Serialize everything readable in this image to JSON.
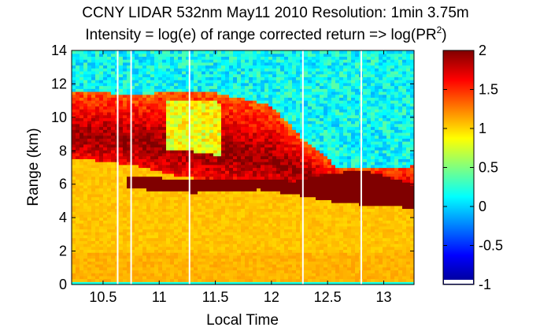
{
  "chart_data": {
    "type": "heatmap",
    "title_line1": "CCNY LIDAR 532nm May11 2010 Resolution: 1min 3.75m",
    "title_line2_prefix": "Intensity = log(e) of range corrected return => log(PR",
    "title_line2_sup": "2",
    "title_line2_suffix": ")",
    "xlabel": "Local Time",
    "ylabel": "Range (km)",
    "xlim": [
      10.22,
      13.27
    ],
    "ylim": [
      0,
      14
    ],
    "x_ticks": [
      10.5,
      11,
      11.5,
      12,
      12.5,
      13
    ],
    "x_tick_labels": [
      "10.5",
      "11",
      "11.5",
      "12",
      "12.5",
      "13"
    ],
    "y_ticks": [
      0,
      2,
      4,
      6,
      8,
      10,
      12,
      14
    ],
    "y_tick_labels": [
      "0",
      "2",
      "4",
      "6",
      "8",
      "10",
      "12",
      "14"
    ],
    "colorbar": {
      "range": [
        -1,
        2
      ],
      "ticks": [
        -1,
        -0.5,
        0,
        0.5,
        1,
        1.5,
        2
      ],
      "tick_labels": [
        "-1",
        "-0.5",
        "0",
        "0.5",
        "1",
        "1.5",
        "2"
      ],
      "colormap": "jet"
    },
    "gap_times": [
      10.63,
      10.75,
      11.27,
      12.28,
      12.8
    ],
    "layers": [
      {
        "x": [
          10.22,
          10.5,
          10.8,
          11.1,
          11.4,
          11.7,
          12.0,
          12.3,
          12.6,
          13.0,
          13.27
        ],
        "cloud_top": [
          11.5,
          11.5,
          11.3,
          11.6,
          11.6,
          11.2,
          10.7,
          8.6,
          7.0,
          7.0,
          7.1
        ],
        "aerosol_top": [
          7.6,
          7.4,
          7.1,
          6.6,
          6.3,
          6.0,
          5.8,
          5.4,
          4.9,
          4.8,
          4.6
        ]
      },
      {
        "dense_band_x": [
          10.72,
          11.0,
          11.3,
          11.6,
          11.9,
          12.2,
          12.5,
          12.8,
          13.27
        ],
        "dense_band_lower": [
          5.8,
          5.6,
          5.5,
          5.6,
          5.7,
          5.4,
          5.0,
          4.8,
          4.6
        ],
        "dense_band_upper": [
          6.5,
          6.4,
          6.3,
          6.3,
          6.3,
          6.2,
          6.6,
          6.9,
          6.0
        ]
      }
    ]
  }
}
